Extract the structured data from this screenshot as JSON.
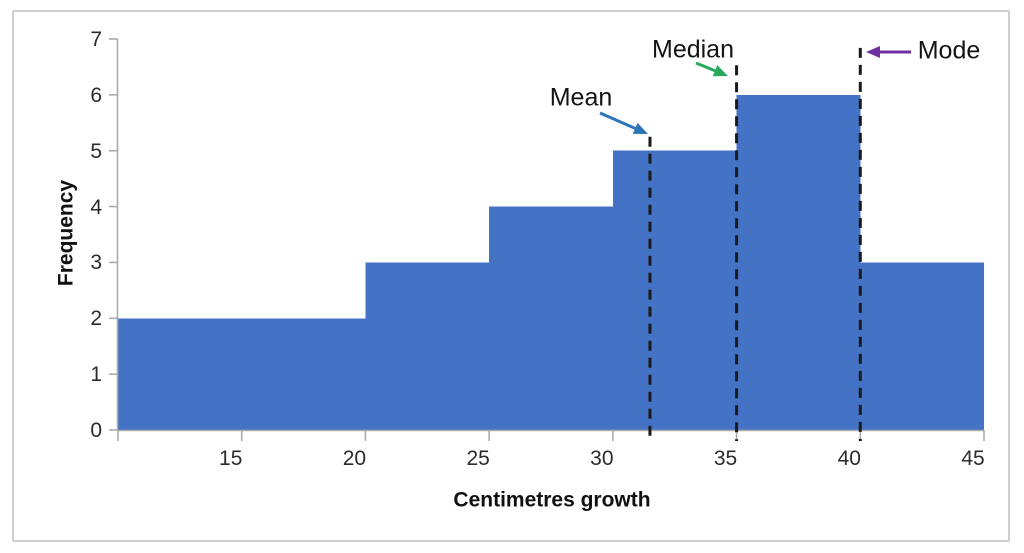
{
  "chart_data": {
    "type": "bar",
    "subtype": "histogram",
    "title": "",
    "xlabel": "Centimetres growth",
    "ylabel": "Frequency",
    "xlim": [
      10,
      45
    ],
    "ylim": [
      0,
      7
    ],
    "x_ticks": [
      15,
      20,
      25,
      30,
      35,
      40,
      45
    ],
    "y_ticks": [
      0,
      1,
      2,
      3,
      4,
      5,
      6,
      7
    ],
    "grid": "off",
    "legend": "none",
    "bar_color": "#4472C4",
    "axis_color": "#ABABAB",
    "dashed_line_color": "#1A1A1A",
    "bins": [
      {
        "range": [
          10,
          20
        ],
        "frequency": 2
      },
      {
        "range": [
          20,
          25
        ],
        "frequency": 3
      },
      {
        "range": [
          25,
          30
        ],
        "frequency": 4
      },
      {
        "range": [
          30,
          35
        ],
        "frequency": 5
      },
      {
        "range": [
          35,
          40
        ],
        "frequency": 6
      },
      {
        "range": [
          40,
          45
        ],
        "frequency": 3
      }
    ],
    "annotations": [
      {
        "label": "Mean",
        "x": 31.5,
        "line_top_frequency": 5.25,
        "arrow_color": "#2E75B6"
      },
      {
        "label": "Median",
        "x": 35.0,
        "line_top_frequency": 6.53,
        "arrow_color": "#28A95C"
      },
      {
        "label": "Mode",
        "x": 40.0,
        "line_top_frequency": 6.84,
        "arrow_color": "#7030A0"
      }
    ]
  }
}
